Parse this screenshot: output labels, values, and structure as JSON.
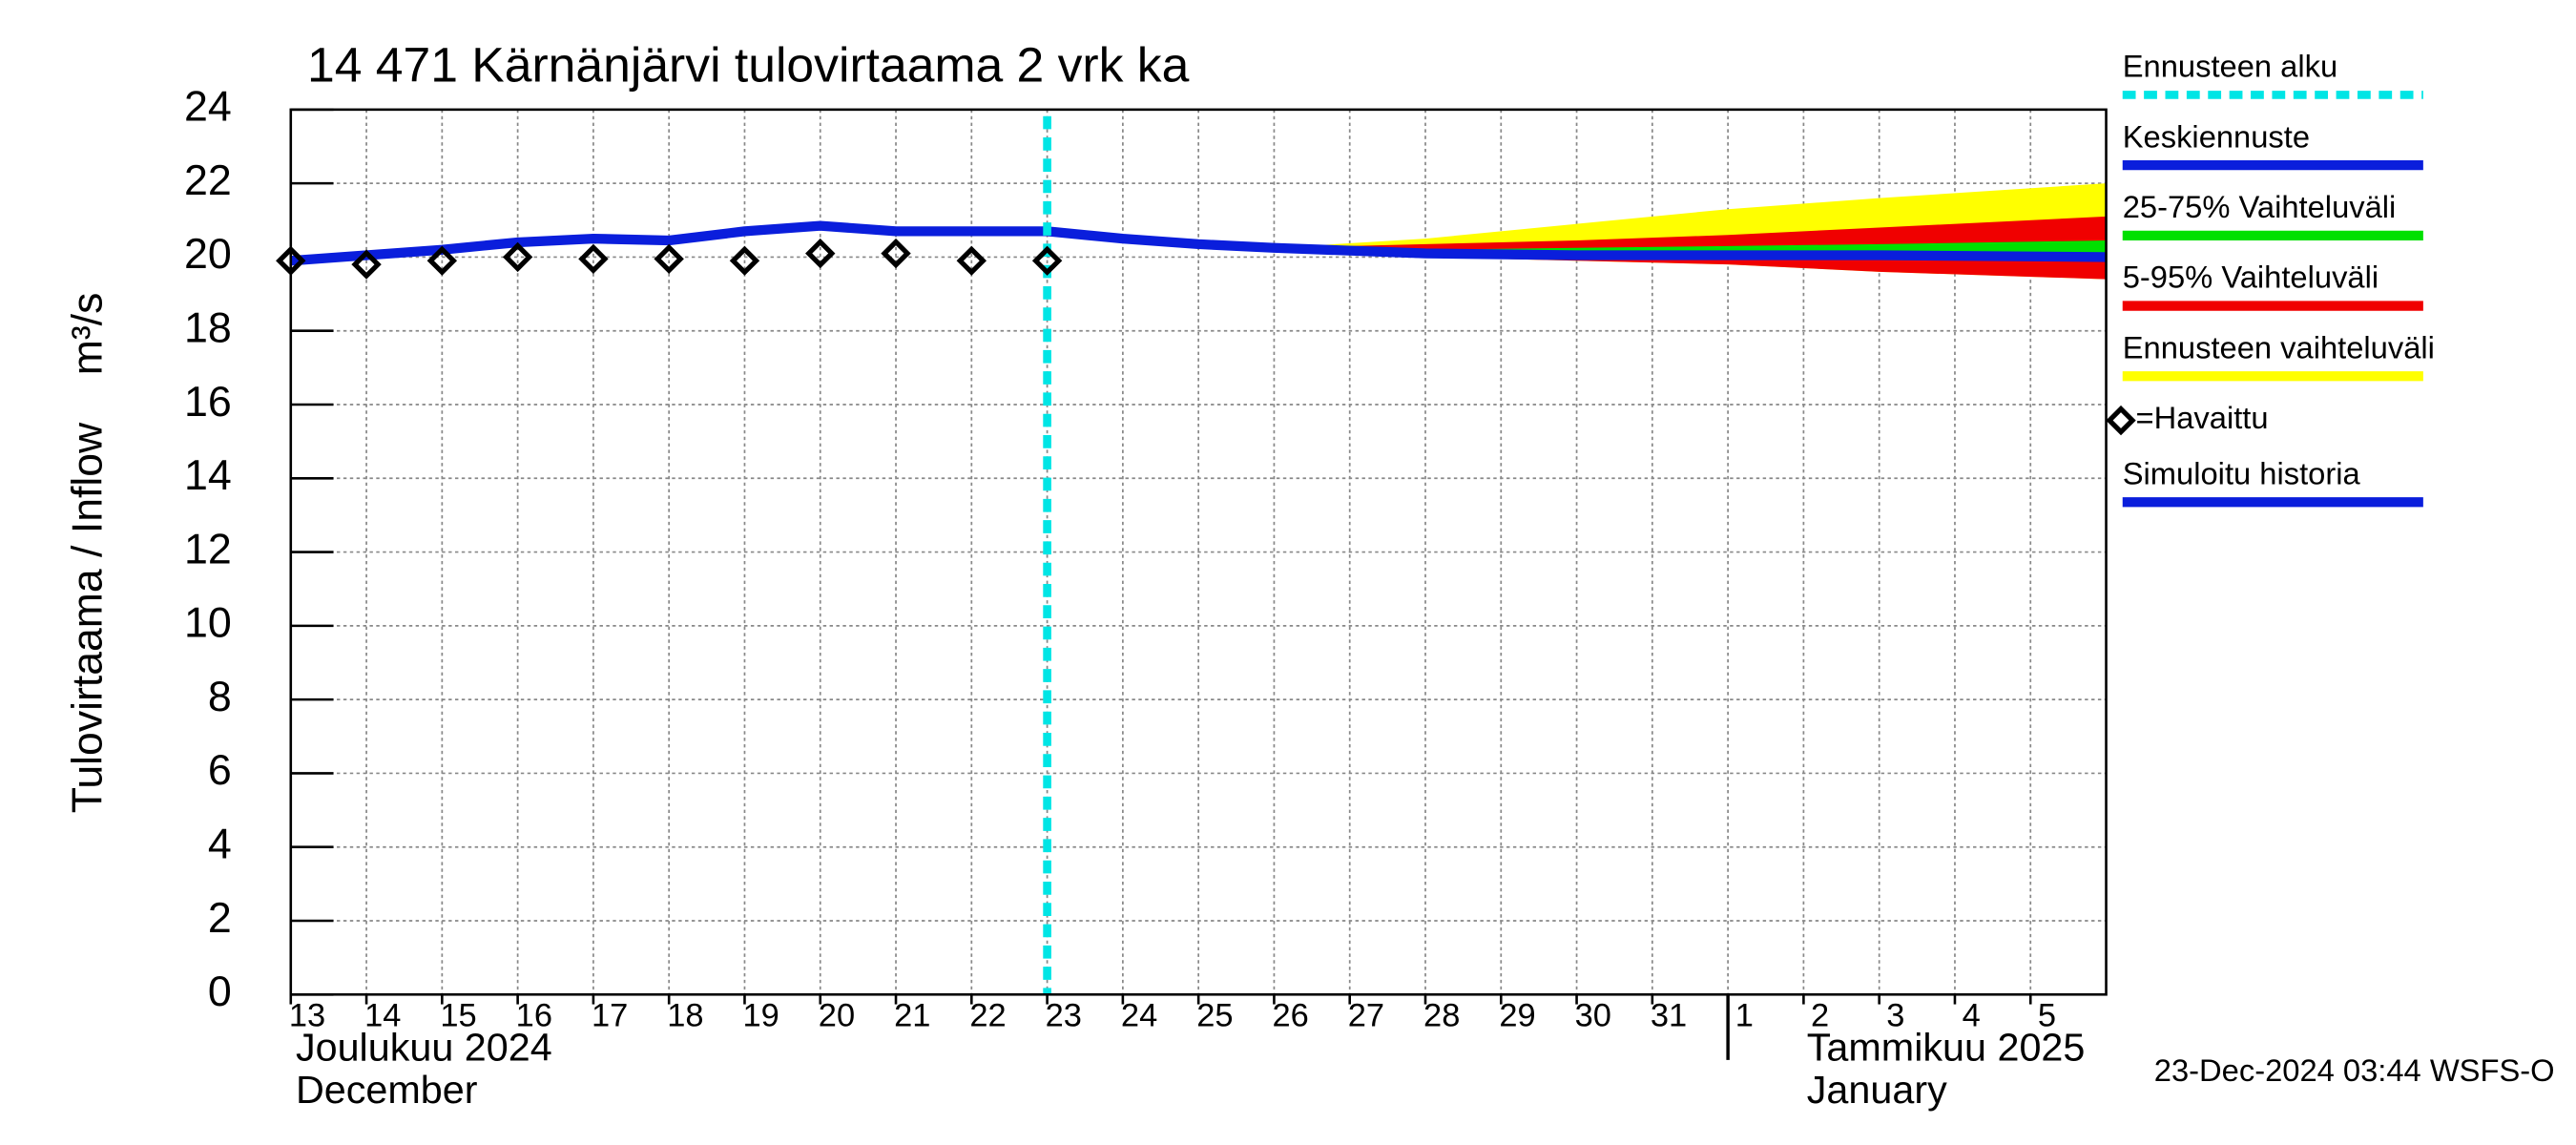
{
  "chart_data": {
    "type": "forecast",
    "title": "14 471 Kärnänjärvi tulovirtaama 2 vrk ka",
    "y_label": "Tulovirtaama / Inflow    m³/s",
    "ylim": [
      0,
      24
    ],
    "yticks": [
      0,
      2,
      4,
      6,
      8,
      10,
      12,
      14,
      16,
      18,
      20,
      22,
      24
    ],
    "xlim": [
      "2024-12-13",
      "2025-01-06"
    ],
    "xticks": [
      {
        "value": "2024-12-13",
        "label": "13"
      },
      {
        "value": "2024-12-14",
        "label": "14"
      },
      {
        "value": "2024-12-15",
        "label": "15"
      },
      {
        "value": "2024-12-16",
        "label": "16"
      },
      {
        "value": "2024-12-17",
        "label": "17"
      },
      {
        "value": "2024-12-18",
        "label": "18"
      },
      {
        "value": "2024-12-19",
        "label": "19"
      },
      {
        "value": "2024-12-20",
        "label": "20"
      },
      {
        "value": "2024-12-21",
        "label": "21"
      },
      {
        "value": "2024-12-22",
        "label": "22"
      },
      {
        "value": "2024-12-23",
        "label": "23"
      },
      {
        "value": "2024-12-24",
        "label": "24"
      },
      {
        "value": "2024-12-25",
        "label": "25"
      },
      {
        "value": "2024-12-26",
        "label": "26"
      },
      {
        "value": "2024-12-27",
        "label": "27"
      },
      {
        "value": "2024-12-28",
        "label": "28"
      },
      {
        "value": "2024-12-29",
        "label": "29"
      },
      {
        "value": "2024-12-30",
        "label": "30"
      },
      {
        "value": "2024-12-31",
        "label": "31"
      },
      {
        "value": "2025-01-01",
        "label": "1"
      },
      {
        "value": "2025-01-02",
        "label": "2"
      },
      {
        "value": "2025-01-03",
        "label": "3"
      },
      {
        "value": "2025-01-04",
        "label": "4"
      },
      {
        "value": "2025-01-05",
        "label": "5"
      }
    ],
    "months": [
      {
        "value": "2024-12-13",
        "label": "Joulukuu  2024",
        "label_en": "December"
      },
      {
        "value": "2025-01-01",
        "label": "Tammikuu  2025",
        "label_en": "January"
      }
    ],
    "grid": true,
    "forecast_start": {
      "name": "Ennusteen alku",
      "color": "#00e5e5",
      "x": "2024-12-23"
    },
    "series": [
      {
        "name": "Keskiennuste",
        "kind": "line",
        "color": "#0a1edc",
        "x": [
          "2024-12-23",
          "2024-12-24",
          "2024-12-25",
          "2024-12-26",
          "2024-12-28",
          "2024-12-30",
          "2025-01-01",
          "2025-01-03",
          "2025-01-06"
        ],
        "values": [
          20.7,
          20.5,
          20.35,
          20.25,
          20.1,
          20.05,
          20.05,
          20.05,
          20.0
        ]
      },
      {
        "name": "25-75% Vaihteluväli",
        "kind": "band",
        "color": "#00e000",
        "x": [
          "2024-12-26",
          "2024-12-28",
          "2024-12-30",
          "2025-01-01",
          "2025-01-03",
          "2025-01-06"
        ],
        "low": [
          20.2,
          20.05,
          20.0,
          19.95,
          19.92,
          19.9
        ],
        "high": [
          20.25,
          20.2,
          20.25,
          20.3,
          20.35,
          20.45
        ]
      },
      {
        "name": "5-95% Vaihteluväli",
        "kind": "band",
        "color": "#f00000",
        "x": [
          "2024-12-26",
          "2024-12-28",
          "2024-12-30",
          "2025-01-01",
          "2025-01-03",
          "2025-01-06"
        ],
        "low": [
          20.2,
          20.0,
          19.9,
          19.8,
          19.6,
          19.4
        ],
        "high": [
          20.25,
          20.35,
          20.45,
          20.6,
          20.8,
          21.1
        ]
      },
      {
        "name": "Ennusteen vaihteluväli",
        "kind": "band",
        "color": "#ffff00",
        "x": [
          "2024-12-26",
          "2024-12-28",
          "2024-12-30",
          "2025-01-01",
          "2025-01-03",
          "2025-01-06"
        ],
        "low": [
          20.2,
          20.0,
          19.9,
          19.8,
          19.6,
          19.4
        ],
        "high": [
          20.25,
          20.5,
          20.9,
          21.3,
          21.6,
          22.0
        ]
      },
      {
        "name": "=Havaittu",
        "kind": "marker",
        "color": "#000000",
        "x": [
          "2024-12-13",
          "2024-12-14",
          "2024-12-15",
          "2024-12-16",
          "2024-12-17",
          "2024-12-18",
          "2024-12-19",
          "2024-12-20",
          "2024-12-21",
          "2024-12-22",
          "2024-12-23"
        ],
        "values": [
          19.9,
          19.8,
          19.9,
          20.0,
          19.95,
          19.95,
          19.9,
          20.1,
          20.1,
          19.9,
          19.9
        ]
      },
      {
        "name": "Simuloitu historia",
        "kind": "line",
        "color": "#0a1edc",
        "x": [
          "2024-12-13",
          "2024-12-14",
          "2024-12-15",
          "2024-12-16",
          "2024-12-17",
          "2024-12-18",
          "2024-12-19",
          "2024-12-20",
          "2024-12-21",
          "2024-12-22",
          "2024-12-23"
        ],
        "values": [
          19.9,
          20.05,
          20.2,
          20.4,
          20.5,
          20.45,
          20.7,
          20.85,
          20.7,
          20.7,
          20.7
        ]
      }
    ],
    "timestamp": "23-Dec-2024 03:44 WSFS-O"
  }
}
